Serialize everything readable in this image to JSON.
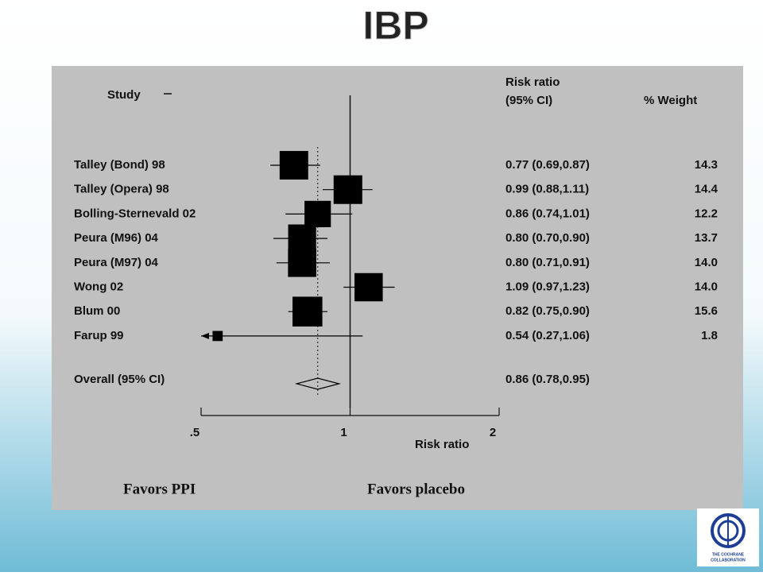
{
  "chart_data": {
    "type": "forest",
    "title": "IBP",
    "columns": {
      "study": "Study",
      "ci": [
        "Risk ratio",
        "(95% CI)"
      ],
      "weight": "% Weight"
    },
    "studies": [
      "Talley (Bond) 98",
      "Talley (Opera) 98",
      "Bolling-Sternevald 02",
      "Peura (M96) 04",
      "Peura (M97) 04",
      "Wong 02",
      "Blum 00",
      "Farup 99"
    ],
    "estimates": [
      0.77,
      0.99,
      0.86,
      0.8,
      0.8,
      1.09,
      0.82,
      0.54
    ],
    "lower": [
      0.69,
      0.88,
      0.74,
      0.7,
      0.71,
      0.97,
      0.75,
      0.27
    ],
    "upper": [
      0.87,
      1.11,
      1.01,
      0.9,
      0.91,
      1.23,
      0.9,
      1.06
    ],
    "ci_labels": [
      "0.77 (0.69,0.87)",
      "0.99 (0.88,1.11)",
      "0.86 (0.74,1.01)",
      "0.80 (0.70,0.90)",
      "0.80 (0.71,0.91)",
      "1.09 (0.97,1.23)",
      "0.82 (0.75,0.90)",
      "0.54 (0.27,1.06)"
    ],
    "weights": [
      14.3,
      14.4,
      12.2,
      13.7,
      14.0,
      14.0,
      15.6,
      1.8
    ],
    "weight_labels": [
      "14.3",
      "14.4",
      "12.2",
      "13.7",
      "14.0",
      "14.0",
      "15.6",
      "1.8"
    ],
    "overall": {
      "label": "Overall (95% CI)",
      "estimate": 0.86,
      "lower": 0.78,
      "upper": 0.95,
      "ci_label": "0.86 (0.78,0.95)"
    },
    "xscale": "log",
    "xlim": [
      0.5,
      2
    ],
    "xticks": [
      {
        "value": 0.5,
        "label": ".5"
      },
      1,
      2
    ],
    "xlabel": "Risk ratio",
    "annotations": [
      "Favors PPI",
      "Favors placebo"
    ],
    "color": "#000000",
    "logo_text": [
      "THE COCHRANE",
      "COLLABORATION"
    ]
  }
}
